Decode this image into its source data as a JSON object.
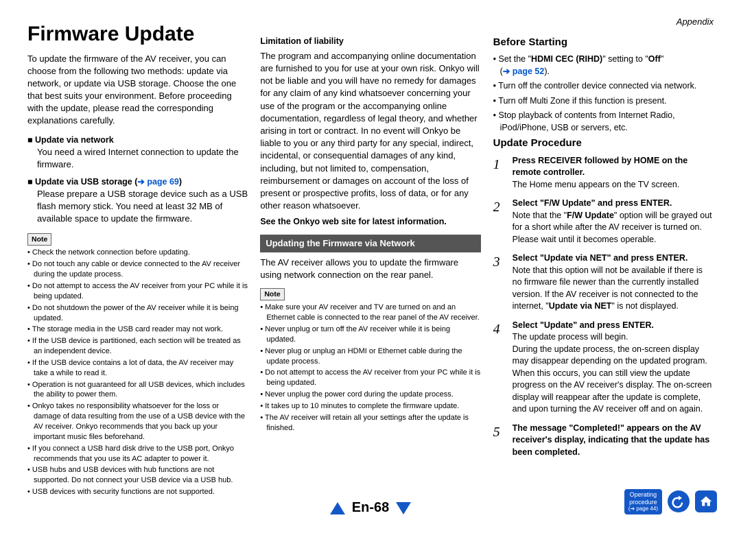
{
  "appendix": "Appendix",
  "title": "Firmware Update",
  "intro": "To update the firmware of the AV receiver, you can choose from the following two methods: update via network, or update via USB storage. Choose the one that best suits your environment. Before proceeding with the update, please read the corresponding explanations carefully.",
  "net_head": "Update via network",
  "net_body": "You need a wired Internet connection to update the firmware.",
  "usb_head_a": "Update via USB storage (",
  "usb_head_b": "➔ page 69",
  "usb_head_c": ")",
  "usb_body": "Please prepare a USB storage device such as a USB flash memory stick. You need at least 32 MB of available space to update the firmware.",
  "note_label": "Note",
  "notes1": [
    "Check the network connection before updating.",
    "Do not touch any cable or device connected to the AV receiver during the update process.",
    "Do not attempt to access the AV receiver from your PC while it is being updated.",
    "Do not shutdown the power of the AV receiver while it is being updated.",
    "The storage media in the USB card reader may not work.",
    "If the USB device is partitioned, each section will be treated as an independent device.",
    "If the USB device contains a lot of data, the AV receiver may take a while to read it.",
    "Operation is not guaranteed for all USB devices, which includes the ability to power them.",
    "Onkyo takes no responsibility whatsoever for the loss or damage of data resulting from the use of a USB device with the AV receiver. Onkyo recommends that you back up your important music files beforehand.",
    "If you connect a USB hard disk drive to the USB port, Onkyo recommends that you use its AC adapter to power it.",
    "USB hubs and USB devices with hub functions are not supported. Do not connect your USB device via a USB hub.",
    "USB devices with security functions are not supported."
  ],
  "liab_head": "Limitation of liability",
  "liab_body": "The program and accompanying online documentation are furnished to you for use at your own risk. Onkyo will not be liable and you will have no remedy for damages for any claim of any kind whatsoever concerning your use of the program or the accompanying online documentation, regardless of legal theory, and whether arising in tort or contract. In no event will Onkyo be liable to you or any third party for any special, indirect, incidental, or consequential damages of any kind, including, but not limited to, compensation, reimbursement or damages on account of the loss of present or prospective profits, loss of data, or for any other reason whatsoever.",
  "see_site": "See the Onkyo web site for latest information.",
  "dark_head": "Updating the Firmware via Network",
  "dark_body": "The AV receiver allows you to update the firmware using network connection on the rear panel.",
  "notes2": [
    "Make sure your AV receiver and TV are turned on and an Ethernet cable is connected to the rear panel of the AV receiver.",
    "Never unplug or turn off the AV receiver while it is being updated.",
    "Never plug or unplug an HDMI or Ethernet cable during the update process.",
    "Do not attempt to access the AV receiver from your PC while it is being updated.",
    "Never unplug the power cord during the update process.",
    "It takes up to 10 minutes to complete the firmware update.",
    "The AV receiver will retain all your settings after the update is finished."
  ],
  "before_head": "Before Starting",
  "before_items": {
    "a_pre": "Set the \"",
    "a_bold": "HDMI CEC (RIHD)",
    "a_mid": "\" setting to \"",
    "a_bold2": "Off",
    "a_post": "\"",
    "a_link": "➔ page 52",
    "b": "Turn off the controller device connected via network.",
    "c": "Turn off Multi Zone if this function is present.",
    "d": "Stop playback of contents from Internet Radio, iPod/iPhone, USB or servers, etc."
  },
  "proc_head": "Update Procedure",
  "steps": {
    "s1b": "Press RECEIVER followed by HOME on the remote controller.",
    "s1t": "The Home menu appears on the TV screen.",
    "s2b": "Select \"F/W Update\" and press ENTER.",
    "s2ta": "Note that the \"",
    "s2tb": "F/W Update",
    "s2tc": "\" option will be grayed out for a short while after the AV receiver is turned on. Please wait until it becomes operable.",
    "s3b": "Select \"Update via NET\" and press ENTER.",
    "s3ta": "Note that this option will not be available if there is no firmware file newer than the currently installed version. If the AV receiver is not connected to the internet, \"",
    "s3tb": "Update via NET",
    "s3tc": "\" is not displayed.",
    "s4b": "Select \"Update\" and press ENTER.",
    "s4t1": "The update process will begin.",
    "s4t2": "During the update process, the on-screen display may disappear depending on the updated program. When this occurs, you can still view the update progress on the AV receiver's display. The on-screen display will reappear after the update is complete, and upon turning the AV receiver off and on again.",
    "s5b": "The message \"Completed!\" appears on the AV receiver's display, indicating that the update has been completed."
  },
  "page_num": "En-68",
  "badge_l1": "Operating",
  "badge_l2": "procedure",
  "badge_l3": "➔ page 44"
}
